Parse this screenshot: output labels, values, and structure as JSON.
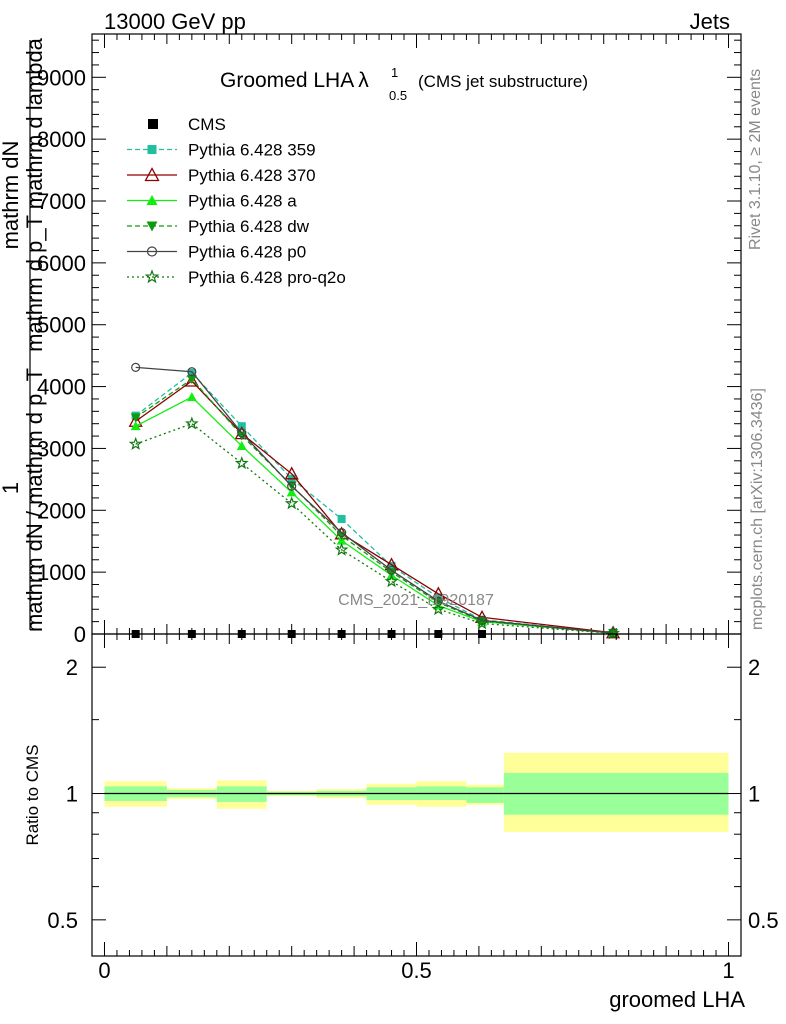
{
  "header": {
    "energy_label": "13000 GeV pp",
    "process_label": "Jets"
  },
  "side_text": {
    "rivet": "Rivet 3.1.10, ≥ 2M events",
    "mcplots": "mcplots.cern.ch [arXiv:1306.3436]"
  },
  "watermark": "CMS_2021_I1920187",
  "chart_data": [
    {
      "type": "line",
      "title_main": "Groomed LHA",
      "title_lambda": "λ",
      "title_sup": "1",
      "title_sub": "0.5",
      "title_note": "(CMS jet substructure)",
      "ylabel_num": "mathrm dN",
      "ylabel_den": "mathrm d p_T mathrm d lambda",
      "ylabel_left_num": "1",
      "ylabel_left_den": "mathrm dN / mathrm d p_T",
      "ylim": [
        0,
        9700
      ],
      "yticks": [
        0,
        1000,
        2000,
        3000,
        4000,
        5000,
        6000,
        7000,
        8000,
        9000
      ],
      "ytick_labels": [
        "0",
        "1000",
        "2000",
        "3000",
        "4000",
        "5000",
        "6000",
        "7000",
        "8000",
        "9000"
      ],
      "x": [
        0.05,
        0.14,
        0.22,
        0.3,
        0.38,
        0.46,
        0.535,
        0.605,
        0.815
      ],
      "series": [
        {
          "name": "CMS",
          "style": "data",
          "color": "#000000",
          "values": [
            0,
            0,
            0,
            0,
            0,
            0,
            0,
            0,
            0
          ]
        },
        {
          "name": "Pythia 6.428 359",
          "style": "dashed",
          "marker": "square",
          "color": "#1fbf9f",
          "values": [
            3530,
            4220,
            3360,
            2510,
            1860,
            1100,
            590,
            230,
            20
          ]
        },
        {
          "name": "Pythia 6.428 370",
          "style": "solid",
          "marker": "triangle-open",
          "color": "#8b0000",
          "values": [
            3440,
            4090,
            3240,
            2590,
            1620,
            1120,
            650,
            270,
            20
          ]
        },
        {
          "name": "Pythia 6.428 a",
          "style": "solid",
          "marker": "triangle",
          "color": "#11ee11",
          "values": [
            3360,
            3830,
            3040,
            2290,
            1510,
            950,
            460,
            200,
            15
          ]
        },
        {
          "name": "Pythia 6.428 dw",
          "style": "dashed",
          "marker": "triangle-down",
          "color": "#119911",
          "values": [
            3500,
            4120,
            3210,
            2400,
            1590,
            1000,
            510,
            210,
            15
          ]
        },
        {
          "name": "Pythia 6.428 p0",
          "style": "solid",
          "marker": "circle-open",
          "color": "#444444",
          "values": [
            4310,
            4240,
            3250,
            2390,
            1640,
            1030,
            530,
            220,
            15
          ]
        },
        {
          "name": "Pythia 6.428 pro-q2o",
          "style": "dotted",
          "marker": "star",
          "color": "#117711",
          "values": [
            3070,
            3400,
            2760,
            2110,
            1360,
            850,
            400,
            170,
            10
          ]
        }
      ]
    },
    {
      "type": "area",
      "ylabel": "Ratio to CMS",
      "xlabel": "groomed LHA",
      "ylim": [
        0.41,
        2.4
      ],
      "yscale": "log",
      "yticks": [
        0.5,
        1,
        2
      ],
      "ytick_labels": [
        "0.5",
        "1",
        "2"
      ],
      "xlim": [
        -0.02,
        1.02
      ],
      "xticks": [
        0,
        0.5,
        1
      ],
      "xtick_labels": [
        "0",
        "0.5",
        "1"
      ],
      "bins": [
        {
          "lo": 0.0,
          "hi": 0.1,
          "inner": [
            0.96,
            1.04
          ],
          "outer": [
            0.93,
            1.07
          ]
        },
        {
          "lo": 0.1,
          "hi": 0.18,
          "inner": [
            0.98,
            1.02
          ],
          "outer": [
            0.97,
            1.03
          ]
        },
        {
          "lo": 0.18,
          "hi": 0.26,
          "inner": [
            0.955,
            1.04
          ],
          "outer": [
            0.92,
            1.075
          ]
        },
        {
          "lo": 0.26,
          "hi": 0.34,
          "inner": [
            0.99,
            1.01
          ],
          "outer": [
            0.985,
            1.015
          ]
        },
        {
          "lo": 0.34,
          "hi": 0.42,
          "inner": [
            0.985,
            1.015
          ],
          "outer": [
            0.975,
            1.025
          ]
        },
        {
          "lo": 0.42,
          "hi": 0.5,
          "inner": [
            0.965,
            1.035
          ],
          "outer": [
            0.94,
            1.055
          ]
        },
        {
          "lo": 0.5,
          "hi": 0.58,
          "inner": [
            0.965,
            1.04
          ],
          "outer": [
            0.93,
            1.07
          ]
        },
        {
          "lo": 0.58,
          "hi": 0.64,
          "inner": [
            0.95,
            1.035
          ],
          "outer": [
            0.94,
            1.05
          ]
        },
        {
          "lo": 0.64,
          "hi": 1.0,
          "inner": [
            0.89,
            1.12
          ],
          "outer": [
            0.81,
            1.25
          ]
        }
      ]
    }
  ]
}
